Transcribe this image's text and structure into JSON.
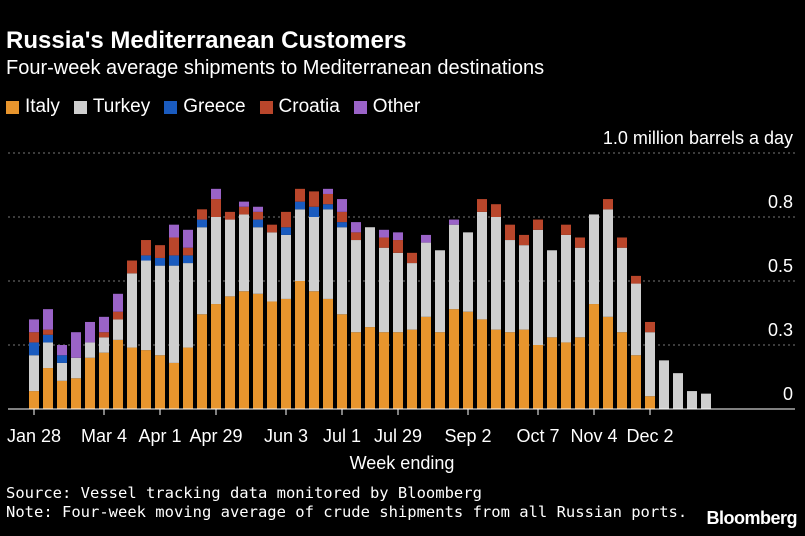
{
  "title": "Russia's Mediterranean Customers",
  "subtitle": "Four-week average shipments to Mediterranean destinations",
  "source": "Source: Vessel tracking data monitored by Bloomberg",
  "note": "Note: Four-week moving average of crude shipments from all Russian ports.",
  "brand": "Bloomberg",
  "colors": {
    "italy": "#e8952d",
    "turkey": "#cfcfcf",
    "greece": "#1a5bbf",
    "croatia": "#b9462b",
    "other": "#9a63c7",
    "background": "#000000",
    "grid": "#777777"
  },
  "chart_data": {
    "type": "bar",
    "stacked": true,
    "title": "Russia's Mediterranean Customers",
    "subtitle": "Four-week average shipments to Mediterranean destinations",
    "xlabel": "Week ending",
    "ylabel": "million barrels a day",
    "unit_label": "1.0 million barrels a day",
    "ylim": [
      0,
      1.0
    ],
    "y_ticks": [
      {
        "value": 0,
        "label": "0"
      },
      {
        "value": 0.25,
        "label": "0.3"
      },
      {
        "value": 0.5,
        "label": "0.5"
      },
      {
        "value": 0.75,
        "label": "0.8"
      },
      {
        "value": 1.0,
        "label": "1.0 million barrels a day"
      }
    ],
    "x_tick_labels": [
      {
        "index": 0,
        "label": "Jan 28"
      },
      {
        "index": 5,
        "label": "Mar 4"
      },
      {
        "index": 9,
        "label": "Apr 1"
      },
      {
        "index": 13,
        "label": "Apr 29"
      },
      {
        "index": 18,
        "label": "Jun 3"
      },
      {
        "index": 22,
        "label": "Jul 1"
      },
      {
        "index": 26,
        "label": "Jul 29"
      },
      {
        "index": 31,
        "label": "Sep 2"
      },
      {
        "index": 36,
        "label": "Oct 7"
      },
      {
        "index": 40,
        "label": "Nov 4"
      },
      {
        "index": 44,
        "label": "Dec 2"
      }
    ],
    "legend_position": "top-left",
    "grid": true,
    "series": [
      {
        "name": "Italy",
        "color": "#e8952d",
        "values": [
          0.07,
          0.16,
          0.11,
          0.12,
          0.2,
          0.22,
          0.27,
          0.24,
          0.23,
          0.21,
          0.18,
          0.24,
          0.37,
          0.41,
          0.44,
          0.46,
          0.45,
          0.42,
          0.43,
          0.5,
          0.46,
          0.43,
          0.37,
          0.3,
          0.32,
          0.3,
          0.3,
          0.31,
          0.36,
          0.3,
          0.39,
          0.38,
          0.35,
          0.31,
          0.3,
          0.31,
          0.25,
          0.28,
          0.26,
          0.28,
          0.41,
          0.36,
          0.3,
          0.21,
          0.05,
          0,
          0,
          0,
          0
        ]
      },
      {
        "name": "Turkey",
        "color": "#cfcfcf",
        "values": [
          0.14,
          0.1,
          0.07,
          0.08,
          0.06,
          0.06,
          0.08,
          0.29,
          0.35,
          0.35,
          0.38,
          0.33,
          0.34,
          0.34,
          0.3,
          0.3,
          0.26,
          0.27,
          0.25,
          0.28,
          0.29,
          0.35,
          0.34,
          0.36,
          0.39,
          0.33,
          0.31,
          0.26,
          0.29,
          0.32,
          0.33,
          0.31,
          0.42,
          0.44,
          0.36,
          0.33,
          0.45,
          0.34,
          0.42,
          0.35,
          0.35,
          0.42,
          0.33,
          0.28,
          0.25,
          0.19,
          0.14,
          0.07,
          0.06
        ]
      },
      {
        "name": "Greece",
        "color": "#1a5bbf",
        "values": [
          0.05,
          0.03,
          0.03,
          0,
          0,
          0,
          0,
          0,
          0.02,
          0.03,
          0.04,
          0.03,
          0.03,
          0,
          0,
          0,
          0.03,
          0,
          0.03,
          0.03,
          0.04,
          0.02,
          0.02,
          0,
          0,
          0,
          0,
          0,
          0,
          0,
          0,
          0,
          0,
          0,
          0,
          0,
          0,
          0,
          0,
          0,
          0,
          0,
          0,
          0,
          0,
          0,
          0,
          0,
          0
        ]
      },
      {
        "name": "Croatia",
        "color": "#b9462b",
        "values": [
          0.04,
          0.02,
          0,
          0,
          0,
          0.02,
          0.03,
          0.05,
          0.06,
          0.05,
          0.07,
          0.03,
          0.04,
          0.07,
          0.03,
          0.03,
          0.03,
          0.03,
          0.06,
          0.05,
          0.06,
          0.04,
          0.04,
          0.03,
          0,
          0.04,
          0.05,
          0.04,
          0,
          0,
          0,
          0,
          0.05,
          0.05,
          0.06,
          0.04,
          0.04,
          0,
          0.04,
          0.04,
          0,
          0.04,
          0.04,
          0.03,
          0.04,
          0,
          0,
          0,
          0
        ]
      },
      {
        "name": "Other",
        "color": "#9a63c7",
        "values": [
          0.05,
          0.08,
          0.04,
          0.1,
          0.08,
          0.06,
          0.07,
          0,
          0,
          0,
          0.05,
          0.07,
          0,
          0.04,
          0,
          0.02,
          0.02,
          0,
          0,
          0,
          0,
          0.02,
          0.05,
          0.04,
          0,
          0.03,
          0.03,
          0,
          0.03,
          0,
          0.02,
          0,
          0,
          0,
          0,
          0,
          0,
          0,
          0,
          0,
          0,
          0,
          0,
          0,
          0,
          0,
          0,
          0,
          0
        ]
      }
    ]
  }
}
